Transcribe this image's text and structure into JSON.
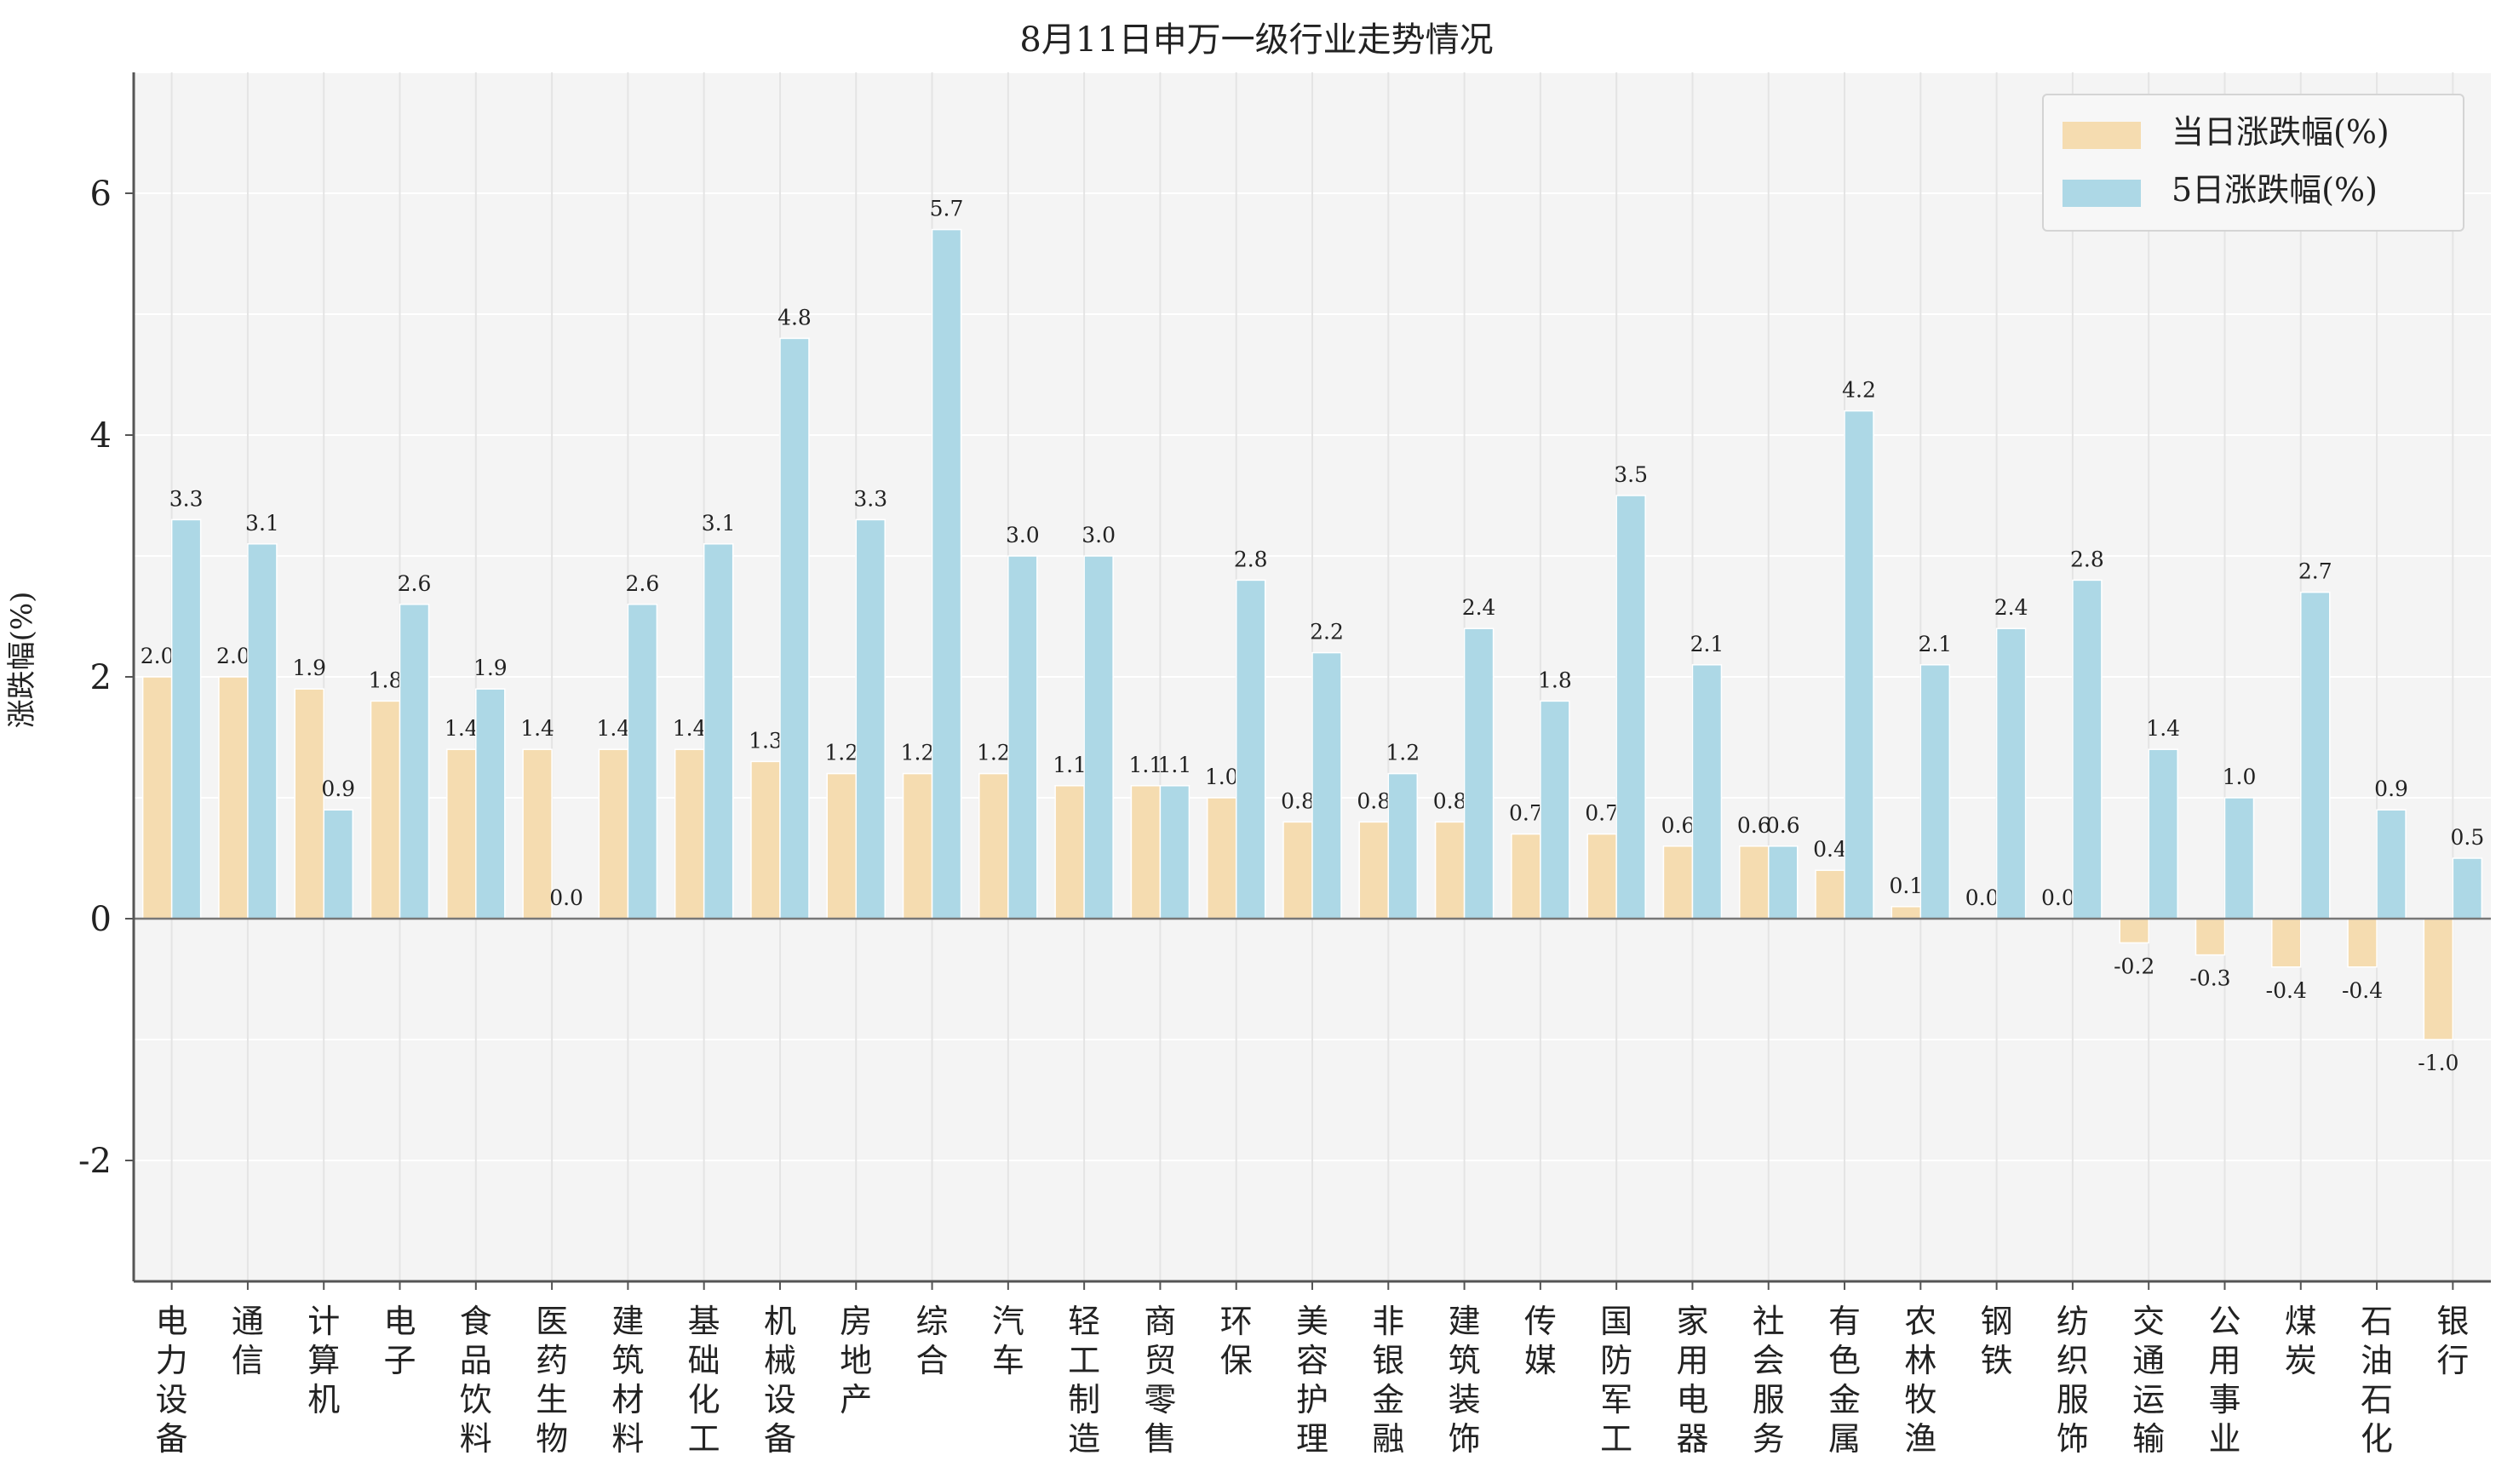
{
  "chart_data": {
    "type": "bar",
    "title": "8月11日申万一级行业走势情况",
    "xlabel": "",
    "ylabel": "涨跌幅(%)",
    "ylim": [
      -3,
      7
    ],
    "yticks": [
      -2,
      0,
      2,
      4,
      6
    ],
    "grid": true,
    "legend_position": "top-right",
    "categories": [
      "电力设备",
      "通信",
      "计算机",
      "电子",
      "食品饮料",
      "医药生物",
      "建筑材料",
      "基础化工",
      "机械设备",
      "房地产",
      "综合",
      "汽车",
      "轻工制造",
      "商贸零售",
      "环保",
      "美容护理",
      "非银金融",
      "建筑装饰",
      "传媒",
      "国防军工",
      "家用电器",
      "社会服务",
      "有色金属",
      "农林牧渔",
      "钢铁",
      "纺织服饰",
      "交通运输",
      "公用事业",
      "煤炭",
      "石油石化",
      "银行"
    ],
    "series": [
      {
        "name": "当日涨跌幅(%)",
        "color": "#f5dcb0",
        "values": [
          2.0,
          2.0,
          1.9,
          1.8,
          1.4,
          1.4,
          1.4,
          1.4,
          1.3,
          1.2,
          1.2,
          1.2,
          1.1,
          1.1,
          1.0,
          0.8,
          0.8,
          0.8,
          0.7,
          0.7,
          0.6,
          0.6,
          0.4,
          0.1,
          0.0,
          0.0,
          -0.2,
          -0.3,
          -0.4,
          -0.4,
          -1.0
        ]
      },
      {
        "name": "5日涨跌幅(%)",
        "color": "#add8e6",
        "values": [
          3.3,
          3.1,
          0.9,
          2.6,
          1.9,
          0.0,
          2.6,
          3.1,
          4.8,
          3.3,
          5.7,
          3.0,
          3.0,
          1.1,
          2.8,
          2.2,
          1.2,
          2.4,
          1.8,
          3.5,
          2.1,
          0.6,
          4.2,
          2.1,
          2.4,
          2.8,
          1.4,
          1.0,
          2.7,
          0.9,
          0.5
        ]
      }
    ],
    "data_labels": [
      [
        "2.0",
        "2.0",
        "1.9",
        "1.8",
        "1.4",
        "1.4",
        "1.4",
        "1.4",
        "1.3",
        "1.2",
        "1.2",
        "1.2",
        "1.1",
        "1.1",
        "1.0",
        "0.8",
        "0.8",
        "0.8",
        "0.7",
        "0.7",
        "0.6",
        "0.6",
        "0.4",
        "0.1",
        "0.0",
        "0.0",
        "-0.2",
        "-0.3",
        "-0.4",
        "-0.4",
        "-1.0"
      ],
      [
        "3.3",
        "3.1",
        "0.9",
        "2.6",
        "1.9",
        "0.0",
        "2.6",
        "3.1",
        "4.8",
        "3.3",
        "5.7",
        "3.0",
        "3.0",
        "1.1",
        "2.8",
        "2.2",
        "1.2",
        "2.4",
        "1.8",
        "3.5",
        "2.1",
        "0.6",
        "4.2",
        "2.1",
        "2.4",
        "2.8",
        "1.4",
        "1.0",
        "2.7",
        "0.9",
        "0.5"
      ]
    ],
    "colors": {
      "background": "#f4f4f4",
      "grid": "#ffffff",
      "axis": "#555555",
      "zero_line": "#777777",
      "text": "#222222"
    }
  }
}
